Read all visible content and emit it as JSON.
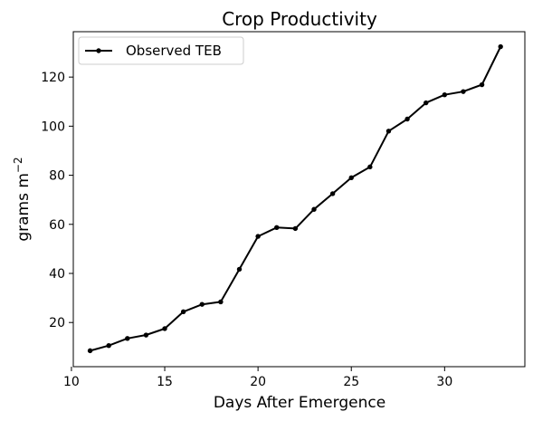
{
  "chart_data": {
    "type": "line",
    "title": "Crop Productivity",
    "xlabel": "Days After Emergence",
    "ylabel": "grams m",
    "ylabel_superscript": "−2",
    "xlim": [
      10.1,
      34.3
    ],
    "ylim": [
      2,
      138.5
    ],
    "xticks": [
      10,
      15,
      20,
      25,
      30
    ],
    "yticks": [
      20,
      40,
      60,
      80,
      100,
      120
    ],
    "grid": false,
    "legend_position": "upper left",
    "series": [
      {
        "name": "Observed TEB",
        "color": "#000000",
        "marker": "dot",
        "x": [
          11,
          12,
          13,
          14,
          15,
          16,
          17,
          18,
          19,
          20,
          21,
          22,
          23,
          24,
          25,
          26,
          27,
          28,
          29,
          30,
          31,
          32,
          33
        ],
        "y": [
          8.5,
          10.6,
          13.5,
          14.9,
          17.5,
          24.4,
          27.4,
          28.4,
          41.7,
          55.1,
          58.7,
          58.3,
          66.1,
          72.5,
          79.0,
          83.4,
          98.0,
          102.9,
          109.5,
          112.8,
          114.1,
          116.9,
          132.4
        ]
      }
    ]
  }
}
